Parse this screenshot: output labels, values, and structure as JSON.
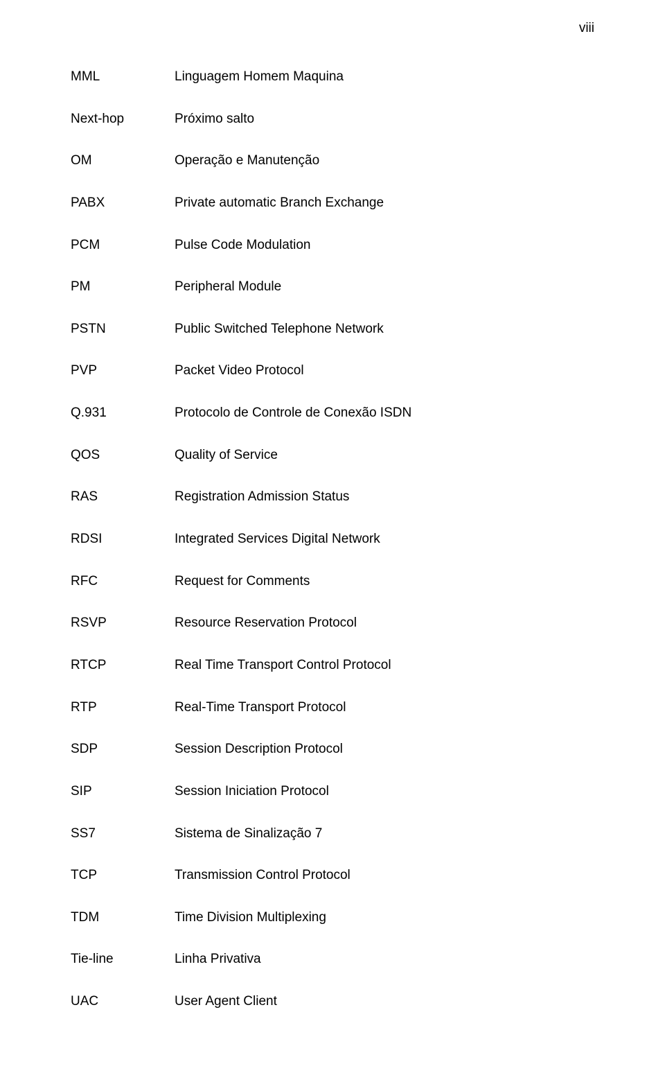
{
  "page_number": "viii",
  "font_family": "Arial, Helvetica, sans-serif",
  "font_size_pt": 14,
  "text_color": "#000000",
  "background_color": "#ffffff",
  "glossary": [
    {
      "term": "MML",
      "def": "Linguagem Homem Maquina"
    },
    {
      "term": "Next-hop",
      "def": "Próximo salto"
    },
    {
      "term": "OM",
      "def": "Operação e Manutenção"
    },
    {
      "term": "PABX",
      "def": "Private automatic Branch Exchange"
    },
    {
      "term": "PCM",
      "def": "Pulse Code Modulation"
    },
    {
      "term": "PM",
      "def": "Peripheral Module"
    },
    {
      "term": "PSTN",
      "def": "Public Switched Telephone Network"
    },
    {
      "term": "PVP",
      "def": "Packet Video Protocol"
    },
    {
      "term": "Q.931",
      "def": "Protocolo de Controle de Conexão ISDN"
    },
    {
      "term": "QOS",
      "def": "Quality of Service"
    },
    {
      "term": "RAS",
      "def": "Registration Admission Status"
    },
    {
      "term": "RDSI",
      "def": "Integrated Services Digital Network"
    },
    {
      "term": "RFC",
      "def": "Request for Comments"
    },
    {
      "term": "RSVP",
      "def": "Resource Reservation Protocol"
    },
    {
      "term": "RTCP",
      "def": "Real Time Transport Control Protocol"
    },
    {
      "term": "RTP",
      "def": "Real-Time Transport Protocol"
    },
    {
      "term": "SDP",
      "def": "Session Description Protocol"
    },
    {
      "term": "SIP",
      "def": "Session Iniciation Protocol"
    },
    {
      "term": "SS7",
      "def": "Sistema de Sinalização 7"
    },
    {
      "term": "TCP",
      "def": "Transmission Control Protocol"
    },
    {
      "term": "TDM",
      "def": "Time Division Multiplexing"
    },
    {
      "term": "Tie-line",
      "def": "Linha Privativa"
    },
    {
      "term": "UAC",
      "def": "User Agent Client"
    }
  ]
}
